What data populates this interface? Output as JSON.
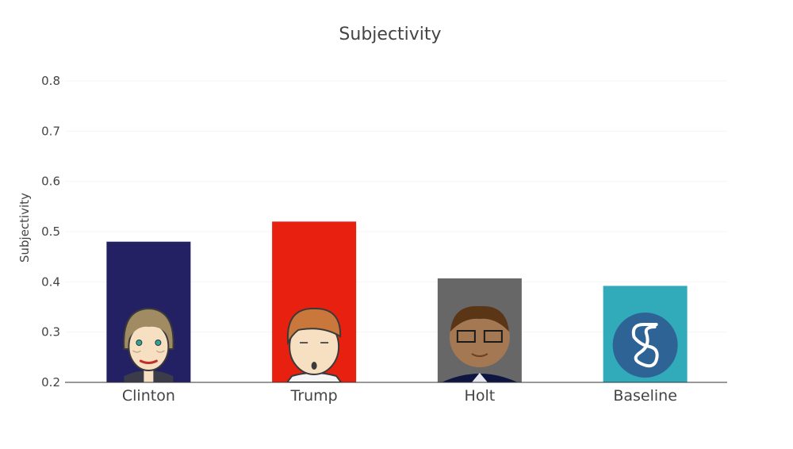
{
  "chart_data": {
    "type": "bar",
    "title": "Subjectivity",
    "xlabel": "",
    "ylabel": "Subjectivity",
    "ylim": [
      0.2,
      0.8
    ],
    "yticks": [
      "0.2",
      "0.3",
      "0.4",
      "0.5",
      "0.6",
      "0.7",
      "0.8"
    ],
    "grid": true,
    "legend": "none",
    "categories": [
      "Clinton",
      "Trump",
      "Holt",
      "Baseline"
    ],
    "values": [
      0.48,
      0.52,
      0.407,
      0.392
    ],
    "colors": [
      "#232163",
      "#e8200f",
      "#676767",
      "#31abb9"
    ],
    "icons": [
      "clinton-avatar-icon",
      "trump-avatar-icon",
      "holt-avatar-icon",
      "baseline-logo-icon"
    ]
  }
}
